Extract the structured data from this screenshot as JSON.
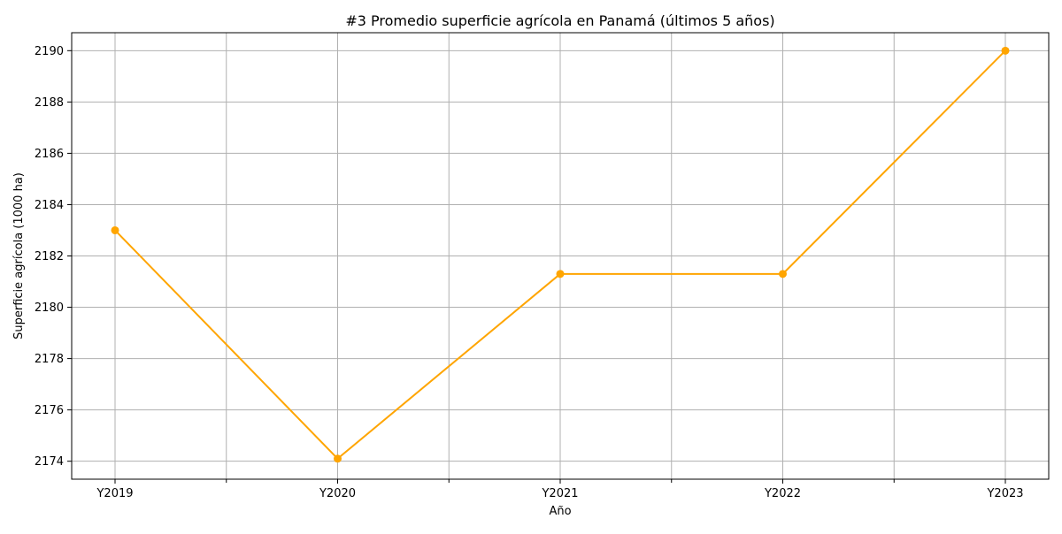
{
  "chart_data": {
    "type": "line",
    "title": "#3 Promedio superficie agrícola en Panamá (últimos 5 años)",
    "xlabel": "Año",
    "ylabel": "Superficie agrícola (1000 ha)",
    "categories": [
      "Y2019",
      "Y2020",
      "Y2021",
      "Y2022",
      "Y2023"
    ],
    "series": [
      {
        "values": [
          2183.0,
          2174.1,
          2181.3,
          2181.3,
          2190.0
        ],
        "color": "#ffa500"
      }
    ],
    "ylim": [
      2173.3,
      2190.7
    ],
    "yticks": [
      2174,
      2176,
      2178,
      2180,
      2182,
      2184,
      2186,
      2188,
      2190
    ],
    "grid": true,
    "minor_x_ticks": true,
    "marker": "circle"
  }
}
